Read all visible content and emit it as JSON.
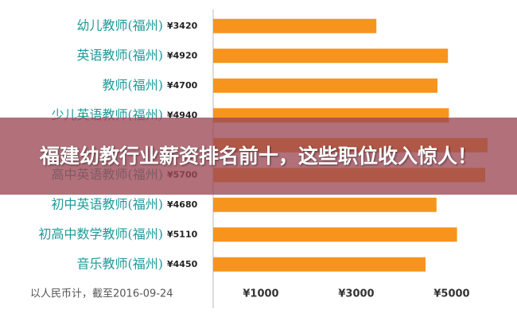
{
  "chart_data": {
    "type": "bar",
    "orientation": "horizontal",
    "categories": [
      "幼儿教师(福州)",
      "英语教师(福州)",
      "教师(福州)",
      "少儿英语教师(福州)",
      null,
      "高中英语教师(福州)",
      "初中英语教师(福州)",
      "初高中数学教师(福州)",
      "音乐教师(福州)"
    ],
    "values": [
      3420,
      4920,
      4700,
      4940,
      5750,
      5700,
      4680,
      5110,
      4450
    ],
    "value_labels": [
      "¥3420",
      "¥4920",
      "¥4700",
      "¥4940",
      null,
      "¥5700",
      "¥4680",
      "¥5110",
      "¥4450"
    ],
    "color": "#f7941d",
    "xlim": [
      0,
      6200
    ],
    "xticks": [
      {
        "value": 1000,
        "label": "¥1000"
      },
      {
        "value": 3000,
        "label": "¥3000"
      },
      {
        "value": 5000,
        "label": "¥5000"
      }
    ],
    "note": "以人民币计，截至2016-09-24"
  },
  "overlay": {
    "title": "福建幼教行业薪资排名前十，这些职位收入惊人！"
  }
}
